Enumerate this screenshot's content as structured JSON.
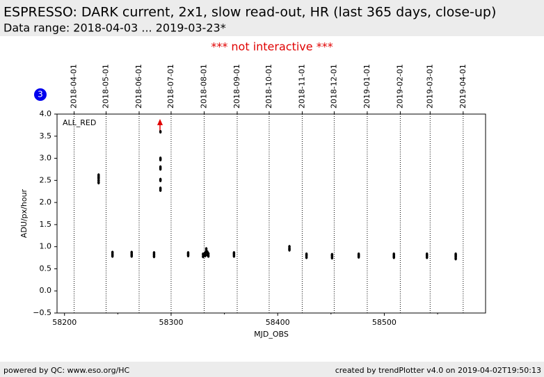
{
  "header": {
    "title": "ESPRESSO: DARK current, 2x1, slow read-out, HR (last 365 days, close-up)",
    "subtitle": "Data range: 2018-04-03 ... 2019-03-23*",
    "notice": "*** not interactive ***"
  },
  "footer": {
    "left": "powered by QC: www.eso.org/HC",
    "right": "created by trendPlotter v4.0 on 2019-04-02T19:50:13"
  },
  "chart_data": {
    "type": "scatter",
    "badge": "3",
    "x_label": "MJD_OBS",
    "y_label": "ADU/px/hour",
    "xlim": [
      58193,
      58595
    ],
    "ylim": [
      -0.5,
      4.0
    ],
    "xticks": [
      58200,
      58300,
      58400,
      58500
    ],
    "xminorticks": [
      58250,
      58350,
      58450,
      58550
    ],
    "yticks": [
      {
        "value": -0.5,
        "label": "−0.5"
      },
      {
        "value": 0,
        "label": "0.0"
      },
      {
        "value": 0.5,
        "label": "0.5"
      },
      {
        "value": 1,
        "label": "1.0"
      },
      {
        "value": 1.5,
        "label": "1.5"
      },
      {
        "value": 2,
        "label": "2.0"
      },
      {
        "value": 2.5,
        "label": "2.5"
      },
      {
        "value": 3,
        "label": "3.0"
      },
      {
        "value": 3.5,
        "label": "3.5"
      },
      {
        "value": 4,
        "label": "4.0"
      }
    ],
    "top_ticks": [
      {
        "value": 58209,
        "label": "2018-04-01"
      },
      {
        "value": 58239,
        "label": "2018-05-01"
      },
      {
        "value": 58270,
        "label": "2018-06-01"
      },
      {
        "value": 58300,
        "label": "2018-07-01"
      },
      {
        "value": 58331,
        "label": "2018-08-01"
      },
      {
        "value": 58362,
        "label": "2018-09-01"
      },
      {
        "value": 58392,
        "label": "2018-10-01"
      },
      {
        "value": 58423,
        "label": "2018-11-01"
      },
      {
        "value": 58453,
        "label": "2018-12-01"
      },
      {
        "value": 58484,
        "label": "2019-01-01"
      },
      {
        "value": 58515,
        "label": "2019-02-01"
      },
      {
        "value": 58543,
        "label": "2019-03-01"
      },
      {
        "value": 58574,
        "label": "2019-04-01"
      }
    ],
    "series": [
      {
        "name": "ALL_RED",
        "color": "#000000",
        "x": [
          58232,
          58232,
          58232,
          58232,
          58232,
          58245,
          58245,
          58245,
          58263,
          58263,
          58263,
          58284,
          58284,
          58284,
          58290,
          58290,
          58290,
          58290,
          58290,
          58290,
          58290,
          58290,
          58290,
          58316,
          58316,
          58316,
          58330,
          58330,
          58332,
          58332,
          58333,
          58333,
          58334,
          58334,
          58335,
          58335,
          58359,
          58359,
          58359,
          58411,
          58411,
          58411,
          58427,
          58427,
          58427,
          58451,
          58451,
          58451,
          58476,
          58476,
          58476,
          58509,
          58509,
          58509,
          58540,
          58540,
          58540,
          58567,
          58567,
          58567,
          58567
        ],
        "values": [
          2.45,
          2.5,
          2.55,
          2.58,
          2.62,
          0.79,
          0.83,
          0.87,
          0.79,
          0.83,
          0.87,
          0.78,
          0.82,
          0.86,
          2.28,
          2.32,
          2.5,
          2.52,
          2.76,
          2.8,
          2.97,
          3.0,
          3.6,
          0.8,
          0.83,
          0.86,
          0.78,
          0.83,
          0.8,
          0.86,
          0.9,
          0.95,
          0.82,
          0.88,
          0.79,
          0.84,
          0.79,
          0.83,
          0.86,
          0.93,
          0.96,
          1.0,
          0.76,
          0.8,
          0.83,
          0.75,
          0.79,
          0.82,
          0.77,
          0.8,
          0.83,
          0.76,
          0.79,
          0.83,
          0.76,
          0.8,
          0.83,
          0.73,
          0.77,
          0.8,
          0.83
        ]
      }
    ]
  }
}
